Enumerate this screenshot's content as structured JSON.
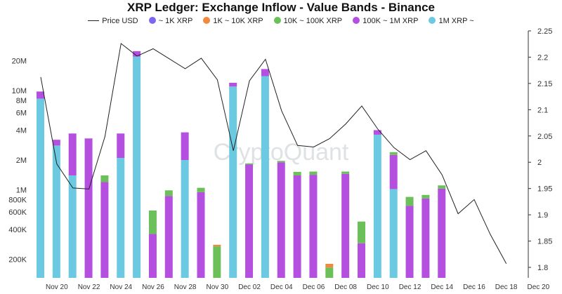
{
  "chart_data": {
    "type": "bar",
    "title": "XRP Ledger: Exchange Inflow - Value Bands - Binance",
    "watermark": "CryptoQuant",
    "y_left_scale": "log",
    "y_left_range": [
      130000,
      40000000
    ],
    "y_left_ticks": [
      {
        "value": 200000,
        "label": "200K"
      },
      {
        "value": 400000,
        "label": "400K"
      },
      {
        "value": 600000,
        "label": "600K"
      },
      {
        "value": 800000,
        "label": "800K"
      },
      {
        "value": 1000000,
        "label": "1M"
      },
      {
        "value": 2000000,
        "label": "2M"
      },
      {
        "value": 4000000,
        "label": "4M"
      },
      {
        "value": 6000000,
        "label": "6M"
      },
      {
        "value": 8000000,
        "label": "8M"
      },
      {
        "value": 10000000,
        "label": "10M"
      },
      {
        "value": 20000000,
        "label": "20M"
      }
    ],
    "y_right_range": [
      1.78,
      2.25
    ],
    "y_right_ticks": [
      {
        "value": 1.8,
        "label": "1.8"
      },
      {
        "value": 1.85,
        "label": "1.85"
      },
      {
        "value": 1.9,
        "label": "1.9"
      },
      {
        "value": 1.95,
        "label": "1.95"
      },
      {
        "value": 2.0,
        "label": "2"
      },
      {
        "value": 2.05,
        "label": "2.05"
      },
      {
        "value": 2.1,
        "label": "2.1"
      },
      {
        "value": 2.15,
        "label": "2.15"
      },
      {
        "value": 2.2,
        "label": "2.2"
      },
      {
        "value": 2.25,
        "label": "2.25"
      }
    ],
    "x_tick_labels": [
      "Nov 20",
      "Nov 22",
      "Nov 24",
      "Nov 26",
      "Nov 28",
      "Nov 30",
      "Dec 02",
      "Dec 04",
      "Dec 06",
      "Dec 08",
      "Dec 10",
      "Dec 12",
      "Dec 14",
      "Dec 16",
      "Dec 18",
      "Dec 20"
    ],
    "legend": [
      "Price USD",
      "~ 1K XRP",
      "1K ~ 10K XRP",
      "10K ~ 100K XRP",
      "100K ~ 1M XRP",
      "1M XRP ~"
    ],
    "series_colors": {
      "band_1k": "#7b68ee",
      "band_1k_10k": "#f08a3e",
      "band_10k_100k": "#6cc05a",
      "band_100k_1m": "#b44fe0",
      "band_1m": "#6cc9e2",
      "price": "#222222"
    },
    "bars": [
      {
        "date": "Nov 19",
        "segments": [
          {
            "band": "band_1m",
            "top": 8300000
          },
          {
            "band": "band_100k_1m",
            "top": 9800000
          }
        ]
      },
      {
        "date": "Nov 20",
        "segments": [
          {
            "band": "band_1m",
            "top": 2800000
          },
          {
            "band": "band_100k_1m",
            "top": 3200000
          }
        ]
      },
      {
        "date": "Nov 21",
        "segments": [
          {
            "band": "band_1m",
            "top": 1400000
          },
          {
            "band": "band_100k_1m",
            "top": 3700000
          }
        ]
      },
      {
        "date": "Nov 22",
        "segments": [
          {
            "band": "band_100k_1m",
            "top": 3300000
          }
        ]
      },
      {
        "date": "Nov 23",
        "segments": [
          {
            "band": "band_100k_1m",
            "top": 1200000
          },
          {
            "band": "band_10k_100k",
            "top": 1400000
          }
        ]
      },
      {
        "date": "Nov 24",
        "segments": [
          {
            "band": "band_1m",
            "top": 2100000
          },
          {
            "band": "band_100k_1m",
            "top": 3700000
          }
        ]
      },
      {
        "date": "Nov 25",
        "segments": [
          {
            "band": "band_1m",
            "top": 22000000
          },
          {
            "band": "band_100k_1m",
            "top": 25000000
          }
        ]
      },
      {
        "date": "Nov 26",
        "segments": [
          {
            "band": "band_100k_1m",
            "top": 360000
          },
          {
            "band": "band_10k_100k",
            "top": 620000
          }
        ]
      },
      {
        "date": "Nov 27",
        "segments": [
          {
            "band": "band_100k_1m",
            "top": 870000
          },
          {
            "band": "band_10k_100k",
            "top": 990000
          }
        ]
      },
      {
        "date": "Nov 28",
        "segments": [
          {
            "band": "band_1m",
            "top": 2000000
          },
          {
            "band": "band_100k_1m",
            "top": 3800000
          }
        ]
      },
      {
        "date": "Nov 29",
        "segments": [
          {
            "band": "band_100k_1m",
            "top": 950000
          },
          {
            "band": "band_10k_100k",
            "top": 1050000
          }
        ]
      },
      {
        "date": "Nov 30",
        "segments": [
          {
            "band": "band_10k_100k",
            "top": 270000
          },
          {
            "band": "band_1k_10k",
            "top": 280000
          }
        ]
      },
      {
        "date": "Dec 01",
        "segments": [
          {
            "band": "band_1m",
            "top": 11000000
          },
          {
            "band": "band_100k_1m",
            "top": 12000000
          }
        ]
      },
      {
        "date": "Dec 02",
        "segments": [
          {
            "band": "band_100k_1m",
            "top": 1800000
          },
          {
            "band": "band_10k_100k",
            "top": 1850000
          }
        ]
      },
      {
        "date": "Dec 03",
        "segments": [
          {
            "band": "band_1m",
            "top": 14000000
          },
          {
            "band": "band_100k_1m",
            "top": 16500000
          }
        ]
      },
      {
        "date": "Dec 04",
        "segments": [
          {
            "band": "band_100k_1m",
            "top": 1900000
          },
          {
            "band": "band_10k_100k",
            "top": 1960000
          }
        ]
      },
      {
        "date": "Dec 05",
        "segments": [
          {
            "band": "band_100k_1m",
            "top": 1400000
          },
          {
            "band": "band_10k_100k",
            "top": 1520000
          }
        ]
      },
      {
        "date": "Dec 06",
        "segments": [
          {
            "band": "band_100k_1m",
            "top": 1420000
          },
          {
            "band": "band_10k_100k",
            "top": 1530000
          }
        ]
      },
      {
        "date": "Dec 07",
        "segments": [
          {
            "band": "band_10k_100k",
            "top": 165000
          },
          {
            "band": "band_1k_10k",
            "top": 180000
          }
        ]
      },
      {
        "date": "Dec 08",
        "segments": [
          {
            "band": "band_100k_1m",
            "top": 1450000
          },
          {
            "band": "band_10k_100k",
            "top": 1530000
          }
        ]
      },
      {
        "date": "Dec 09",
        "segments": [
          {
            "band": "band_100k_1m",
            "top": 290000
          },
          {
            "band": "band_10k_100k",
            "top": 480000
          }
        ]
      },
      {
        "date": "Dec 10",
        "segments": [
          {
            "band": "band_1m",
            "top": 3600000
          },
          {
            "band": "band_100k_1m",
            "top": 4000000
          }
        ]
      },
      {
        "date": "Dec 11",
        "segments": [
          {
            "band": "band_1m",
            "top": 1020000
          },
          {
            "band": "band_100k_1m",
            "top": 2250000
          },
          {
            "band": "band_10k_100k",
            "top": 2400000
          }
        ]
      },
      {
        "date": "Dec 12",
        "segments": [
          {
            "band": "band_100k_1m",
            "top": 690000
          },
          {
            "band": "band_10k_100k",
            "top": 850000
          }
        ]
      },
      {
        "date": "Dec 13",
        "segments": [
          {
            "band": "band_100k_1m",
            "top": 820000
          },
          {
            "band": "band_10k_100k",
            "top": 890000
          }
        ]
      },
      {
        "date": "Dec 14",
        "segments": [
          {
            "band": "band_100k_1m",
            "top": 1030000
          },
          {
            "band": "band_10k_100k",
            "top": 1110000
          }
        ]
      }
    ],
    "price": [
      {
        "date": "Nov 19",
        "value": 2.162
      },
      {
        "date": "Nov 20",
        "value": 1.997
      },
      {
        "date": "Nov 21",
        "value": 1.951
      },
      {
        "date": "Nov 22",
        "value": 1.949
      },
      {
        "date": "Nov 23",
        "value": 2.049
      },
      {
        "date": "Nov 24",
        "value": 2.226
      },
      {
        "date": "Nov 25",
        "value": 2.202
      },
      {
        "date": "Nov 26",
        "value": 2.216
      },
      {
        "date": "Nov 27",
        "value": 2.197
      },
      {
        "date": "Nov 28",
        "value": 2.178
      },
      {
        "date": "Nov 29",
        "value": 2.198
      },
      {
        "date": "Nov 30",
        "value": 2.157
      },
      {
        "date": "Dec 01",
        "value": 2.022
      },
      {
        "date": "Dec 02",
        "value": 2.155
      },
      {
        "date": "Dec 03",
        "value": 2.196
      },
      {
        "date": "Dec 04",
        "value": 2.098
      },
      {
        "date": "Dec 05",
        "value": 2.032
      },
      {
        "date": "Dec 06",
        "value": 2.029
      },
      {
        "date": "Dec 07",
        "value": 2.045
      },
      {
        "date": "Dec 08",
        "value": 2.073
      },
      {
        "date": "Dec 09",
        "value": 2.107
      },
      {
        "date": "Dec 10",
        "value": 2.063
      },
      {
        "date": "Dec 11",
        "value": 2.028
      },
      {
        "date": "Dec 12",
        "value": 2.005
      },
      {
        "date": "Dec 13",
        "value": 2.022
      },
      {
        "date": "Dec 14",
        "value": 1.976
      },
      {
        "date": "Dec 15",
        "value": 1.902
      },
      {
        "date": "Dec 16",
        "value": 1.929
      },
      {
        "date": "Dec 17",
        "value": 1.863
      },
      {
        "date": "Dec 18",
        "value": 1.807
      }
    ]
  }
}
